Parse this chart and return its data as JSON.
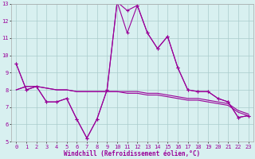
{
  "x": [
    0,
    1,
    2,
    3,
    4,
    5,
    6,
    7,
    8,
    9,
    10,
    11,
    12,
    13,
    14,
    15,
    16,
    17,
    18,
    19,
    20,
    21,
    22,
    23
  ],
  "line1": [
    9.5,
    8.0,
    8.2,
    7.3,
    7.3,
    7.5,
    6.3,
    5.2,
    6.3,
    8.0,
    13.1,
    12.6,
    12.9,
    11.3,
    10.4,
    11.1,
    9.3,
    8.0,
    7.9,
    7.9,
    7.5,
    7.3,
    6.4,
    6.5
  ],
  "line2": [
    9.5,
    8.0,
    8.2,
    7.3,
    7.3,
    7.5,
    6.3,
    5.2,
    6.3,
    8.0,
    13.1,
    11.3,
    12.9,
    11.3,
    10.4,
    11.1,
    9.3,
    8.0,
    7.9,
    7.9,
    7.5,
    7.3,
    6.4,
    6.5
  ],
  "line3": [
    8.0,
    8.2,
    8.2,
    8.1,
    8.0,
    8.0,
    7.9,
    7.9,
    7.9,
    7.9,
    7.9,
    7.9,
    7.9,
    7.8,
    7.8,
    7.7,
    7.6,
    7.5,
    7.5,
    7.4,
    7.3,
    7.2,
    6.8,
    6.6
  ],
  "line4": [
    8.0,
    8.2,
    8.2,
    8.1,
    8.0,
    8.0,
    7.9,
    7.9,
    7.9,
    7.9,
    7.9,
    7.8,
    7.8,
    7.7,
    7.7,
    7.6,
    7.5,
    7.4,
    7.4,
    7.3,
    7.2,
    7.1,
    6.7,
    6.5
  ],
  "line_color": "#990099",
  "bg_color": "#d8f0f0",
  "grid_color": "#aacccc",
  "xlabel": "Windchill (Refroidissement éolien,°C)",
  "ylim": [
    5,
    13
  ],
  "xlim": [
    -0.5,
    23.5
  ],
  "yticks": [
    5,
    6,
    7,
    8,
    9,
    10,
    11,
    12,
    13
  ],
  "xticks": [
    0,
    1,
    2,
    3,
    4,
    5,
    6,
    7,
    8,
    9,
    10,
    11,
    12,
    13,
    14,
    15,
    16,
    17,
    18,
    19,
    20,
    21,
    22,
    23
  ],
  "tick_fontsize": 5.0,
  "xlabel_fontsize": 5.5,
  "marker_size": 2.5,
  "line_width": 0.8
}
